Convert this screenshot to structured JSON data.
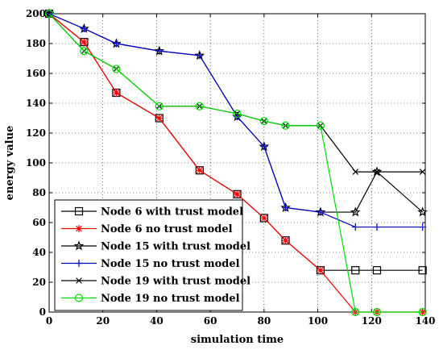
{
  "chart_data": {
    "type": "line",
    "title": "",
    "xlabel": "simulation time",
    "ylabel": "energy value",
    "xlim": [
      0,
      140
    ],
    "ylim": [
      0,
      200
    ],
    "xticks": [
      0,
      20,
      40,
      60,
      80,
      100,
      120,
      140
    ],
    "yticks": [
      0,
      20,
      40,
      60,
      80,
      100,
      120,
      140,
      160,
      180,
      200
    ],
    "grid": true,
    "legend_position": "bottom-left",
    "series": [
      {
        "name": "Node 6 with trust model",
        "color": "#000000",
        "marker": "square",
        "x": [
          0,
          13,
          25,
          41,
          56,
          70,
          80,
          88,
          101,
          114,
          122,
          139
        ],
        "y": [
          200,
          181,
          147,
          130,
          95,
          79,
          63,
          48,
          28,
          28,
          28,
          28
        ]
      },
      {
        "name": "Node 6 no trust model",
        "color": "#ff0000",
        "marker": "asterisk",
        "x": [
          0,
          13,
          25,
          41,
          56,
          70,
          80,
          88,
          101,
          114,
          122,
          139
        ],
        "y": [
          200,
          181,
          147,
          130,
          95,
          79,
          63,
          48,
          28,
          0,
          0,
          0
        ]
      },
      {
        "name": "Node 15 with trust model",
        "color": "#000000",
        "marker": "star",
        "x": [
          0,
          13,
          25,
          41,
          56,
          70,
          80,
          88,
          101,
          114,
          122,
          139
        ],
        "y": [
          200,
          190,
          180,
          175,
          172,
          131,
          111,
          70,
          67,
          67,
          94,
          67
        ]
      },
      {
        "name": "Node 15 no trust model",
        "color": "#0000cc",
        "marker": "plus",
        "x": [
          0,
          13,
          25,
          41,
          56,
          70,
          80,
          88,
          101,
          114,
          122,
          139
        ],
        "y": [
          200,
          190,
          180,
          175,
          172,
          131,
          111,
          70,
          67,
          57,
          57,
          57
        ]
      },
      {
        "name": "Node 19 with trust model",
        "color": "#000000",
        "marker": "x",
        "x": [
          0,
          13,
          25,
          41,
          56,
          70,
          80,
          88,
          101,
          114,
          122,
          139
        ],
        "y": [
          200,
          175,
          163,
          138,
          138,
          133,
          128,
          125,
          125,
          94,
          94,
          94
        ]
      },
      {
        "name": "Node 19 no trust model",
        "color": "#00dd00",
        "marker": "circle",
        "x": [
          0,
          13,
          25,
          41,
          56,
          70,
          80,
          88,
          101,
          114,
          122,
          139
        ],
        "y": [
          200,
          175,
          163,
          138,
          138,
          133,
          128,
          125,
          125,
          0,
          0,
          0
        ]
      }
    ]
  }
}
